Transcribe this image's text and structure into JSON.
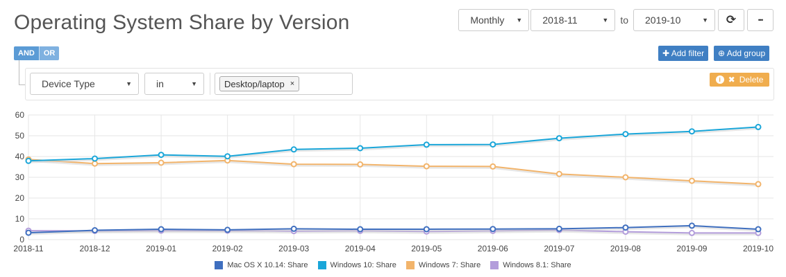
{
  "page": {
    "title": "Operating System Share by Version"
  },
  "toolbar": {
    "period": "Monthly",
    "from": "2018-11",
    "to_label": "to",
    "to": "2019-10",
    "refresh_icon": "refresh-icon",
    "more_icon": "more-icon",
    "more_glyph": "•••",
    "refresh_glyph": "⟳"
  },
  "filter": {
    "and_label": "AND",
    "or_label": "OR",
    "add_filter_label": "Add filter",
    "add_group_label": "Add group",
    "rule": {
      "field": "Device Type",
      "operator": "in",
      "values": [
        "Desktop/laptop"
      ],
      "remove_glyph": "×"
    },
    "delete_label": "Delete",
    "info_glyph": "i",
    "delete_glyph": "✖",
    "plus_glyph": "✚",
    "group_glyph": "⊕"
  },
  "colors": {
    "mac": "#3f6fbf",
    "win10": "#1aa6d9",
    "win7": "#f2b46b",
    "win81": "#b39ddb",
    "grid": "#e6e6e6",
    "accent": "#3f7fc3",
    "delete": "#f0ad4e"
  },
  "chart_data": {
    "type": "line",
    "categories": [
      "2018-11",
      "2018-12",
      "2019-01",
      "2019-02",
      "2019-03",
      "2019-04",
      "2019-05",
      "2019-06",
      "2019-07",
      "2019-08",
      "2019-09",
      "2019-10"
    ],
    "ylim": [
      0,
      60
    ],
    "yticks": [
      0,
      10,
      20,
      30,
      40,
      50,
      60
    ],
    "grid": true,
    "legend_placement": "bottom",
    "series": [
      {
        "name": "Mac OS X 10.14: Share",
        "color": "#3f6fbf",
        "values": [
          3.3,
          4.5,
          5.0,
          4.7,
          5.2,
          5.0,
          5.0,
          5.1,
          5.2,
          5.8,
          6.7,
          5.0
        ]
      },
      {
        "name": "Windows 10: Share",
        "color": "#1aa6d9",
        "values": [
          37.9,
          39.0,
          40.8,
          40.1,
          43.4,
          44.0,
          45.7,
          45.8,
          48.8,
          50.8,
          52.1,
          54.2
        ]
      },
      {
        "name": "Windows 7: Share",
        "color": "#f2b46b",
        "values": [
          38.6,
          36.6,
          37.0,
          38.1,
          36.3,
          36.2,
          35.3,
          35.2,
          31.6,
          30.0,
          28.3,
          26.7
        ]
      },
      {
        "name": "Windows 8.1: Share",
        "color": "#b39ddb",
        "values": [
          4.3,
          4.2,
          4.3,
          4.3,
          4.1,
          4.2,
          3.9,
          4.2,
          4.6,
          3.8,
          3.2,
          3.2
        ]
      }
    ]
  }
}
